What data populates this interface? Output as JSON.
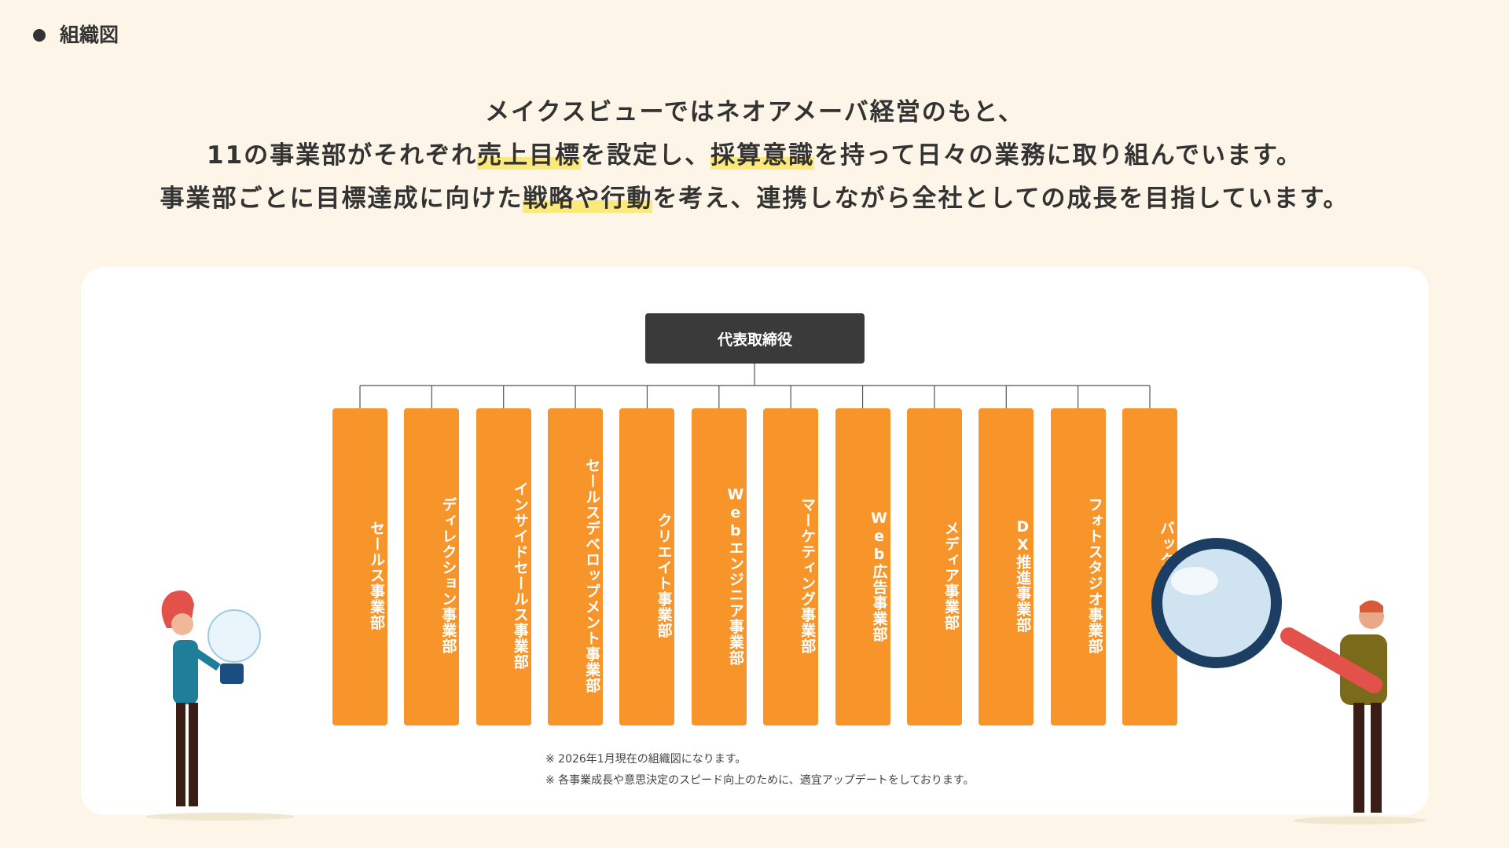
{
  "header": {
    "title": "組織図"
  },
  "intro": {
    "lines": [
      [
        "メイクスビューではネオアメーバ経営のもと、"
      ],
      [
        "11の事業部がそれぞれ",
        "売上目標",
        "を設定し、",
        "採算意識",
        "を持って日々の業務に取り組んでいます。"
      ],
      [
        "事業部ごとに目標達成に向けた",
        "戦略や行動",
        "を考え、連携しながら全社としての成長を目指しています。"
      ]
    ]
  },
  "org": {
    "root": "代表取締役",
    "departments": [
      "セールス事業部",
      "ディレクション事業部",
      "インサイドセールス事業部",
      "セールスデベロップメント事業部",
      "クリエイト事業部",
      "Webエンジニア事業部",
      "マーケティング事業部",
      "Web広告事業部",
      "メディア事業部",
      "DX推進事業部",
      "フォトスタジオ事業部",
      "バックオフィス"
    ]
  },
  "notes": [
    "※ 2026年1月現在の組織図になります。",
    "※ 各事業成長や意思決定のスピード向上のために、適宜アップデートをしております。"
  ]
}
